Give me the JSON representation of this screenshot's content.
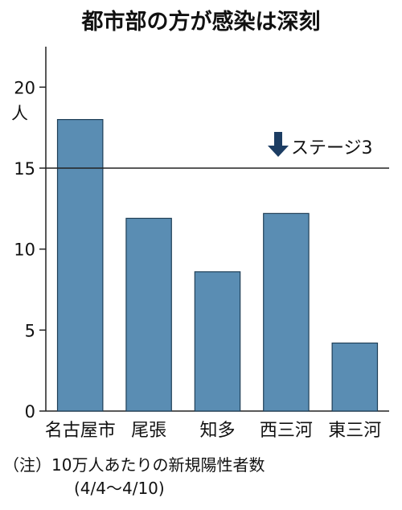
{
  "chart_data": {
    "type": "bar",
    "title": "都市部の方が感染は深刻",
    "ylabel": "人",
    "categories": [
      "名古屋市",
      "尾張",
      "知多",
      "西三河",
      "東三河"
    ],
    "values": [
      18.0,
      11.9,
      8.6,
      12.2,
      4.2
    ],
    "ylim": [
      0,
      22.5
    ],
    "yticks": [
      0,
      5,
      10,
      15,
      20
    ],
    "reference_line": {
      "value": 15,
      "label": "ステージ3"
    },
    "bar_color": "#5a8db3",
    "note_line1": "（注）10万人あたりの新規陽性者数",
    "note_line2": "(4/4〜4/10)"
  }
}
